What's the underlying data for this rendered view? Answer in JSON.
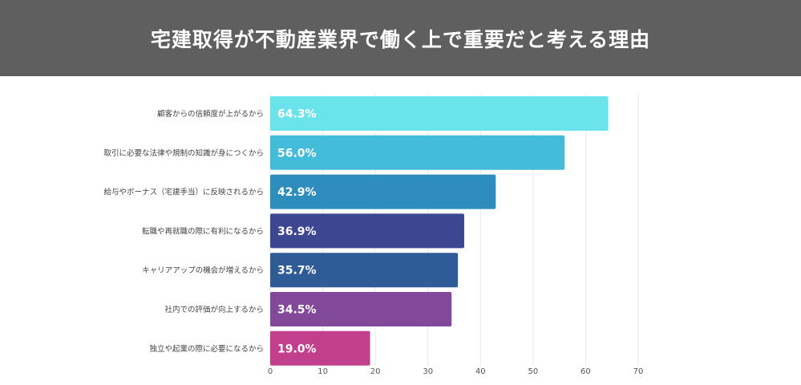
{
  "header": {
    "title": "宅建取得が不動産業界で働く上で重要だと考える理由"
  },
  "chart_data": {
    "type": "bar",
    "orientation": "horizontal",
    "categories": [
      "顧客からの信頼度が上がるから",
      "取引に必要な法律や規制の知識が身につくから",
      "給与やボーナス（宅建手当）に反映されるから",
      "転職や再就職の際に有利になるから",
      "キャリアアップの機会が増えるから",
      "社内での評価が向上するから",
      "独立や起業の際に必要になるから"
    ],
    "values": [
      64.3,
      56.0,
      42.9,
      36.9,
      35.7,
      34.5,
      19.0
    ],
    "data_labels": [
      "64.3%",
      "56.0%",
      "42.9%",
      "36.9%",
      "35.7%",
      "34.5%",
      "19.0%"
    ],
    "colors": [
      "#6ae4ea",
      "#43bcd9",
      "#2e8dbd",
      "#3d4690",
      "#2f5b96",
      "#824899",
      "#c23f8e"
    ],
    "xlim": [
      0,
      70
    ],
    "xticks": [
      0,
      10,
      20,
      30,
      40,
      50,
      60,
      70
    ],
    "grid": true
  }
}
